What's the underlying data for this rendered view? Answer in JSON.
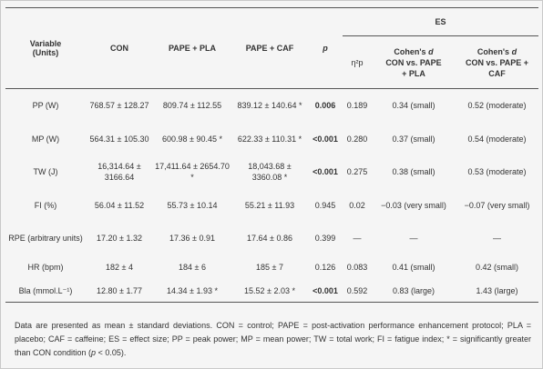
{
  "header": {
    "variable": "Variable",
    "units": "(Units)",
    "con": "CON",
    "pape_pla": "PAPE + PLA",
    "pape_caf": "PAPE + CAF",
    "p": "p",
    "es": "ES",
    "eta": "η²p",
    "cohen1_a": "Cohen's",
    "cohen1_d": "d",
    "cohen1_b": "CON vs. PAPE",
    "cohen1_c": "+ PLA",
    "cohen2_a": "Cohen's",
    "cohen2_d": "d",
    "cohen2_b": "CON vs. PAPE +",
    "cohen2_c": "CAF"
  },
  "rows": [
    {
      "variable": "PP (W)",
      "con": "768.57 ± 128.27",
      "pla": "809.74 ± 112.55",
      "caf": "839.12 ± 140.64 *",
      "p": "0.006",
      "eta": "0.189",
      "d1": "0.34 (small)",
      "d2": "0.52 (moderate)"
    },
    {
      "variable": "MP (W)",
      "con": "564.31 ± 105.30",
      "pla": "600.98 ± 90.45 *",
      "caf": "622.33 ± 110.31 *",
      "p": "<0.001",
      "eta": "0.280",
      "d1": "0.37 (small)",
      "d2": "0.54 (moderate)"
    },
    {
      "variable": "TW (J)",
      "con": "16,314.64 ± 3166.64",
      "pla": "17,411.64 ± 2654.70 *",
      "caf": "18,043.68 ± 3360.08 *",
      "p": "<0.001",
      "eta": "0.275",
      "d1": "0.38 (small)",
      "d2": "0.53 (moderate)"
    },
    {
      "variable": "FI (%)",
      "con": "56.04 ± 11.52",
      "pla": "55.73 ± 10.14",
      "caf": "55.21 ± 11.93",
      "p": "0.945",
      "eta": "0.02",
      "d1": "−0.03 (very small)",
      "d2": "−0.07 (very small)"
    },
    {
      "variable": "RPE (arbitrary units)",
      "con": "17.20 ± 1.32",
      "pla": "17.36 ± 0.91",
      "caf": "17.64 ± 0.86",
      "p": "0.399",
      "eta": "—",
      "d1": "—",
      "d2": "—"
    },
    {
      "variable": "HR (bpm)",
      "con": "182 ± 4",
      "pla": "184 ± 6",
      "caf": "185 ± 7",
      "p": "0.126",
      "eta": "0.083",
      "d1": "0.41 (small)",
      "d2": "0.42 (small)"
    },
    {
      "variable": "Bla (mmol.L⁻¹)",
      "con": "12.80 ± 1.77",
      "pla": "14.34 ± 1.93 *",
      "caf": "15.52 ± 2.03 *",
      "p": "<0.001",
      "eta": "0.592",
      "d1": "0.83 (large)",
      "d2": "1.43 (large)"
    }
  ],
  "note": {
    "text1": "Data are presented as mean ± standard deviations. CON = control; PAPE = post-activation performance enhancement protocol; PLA = placebo; CAF = caffeine; ES = effect size; PP = peak power; MP = mean power; TW = total work; FI = fatigue index; * = significantly greater than CON condition (",
    "p_italic": "p",
    "text2": " < 0.05)."
  }
}
